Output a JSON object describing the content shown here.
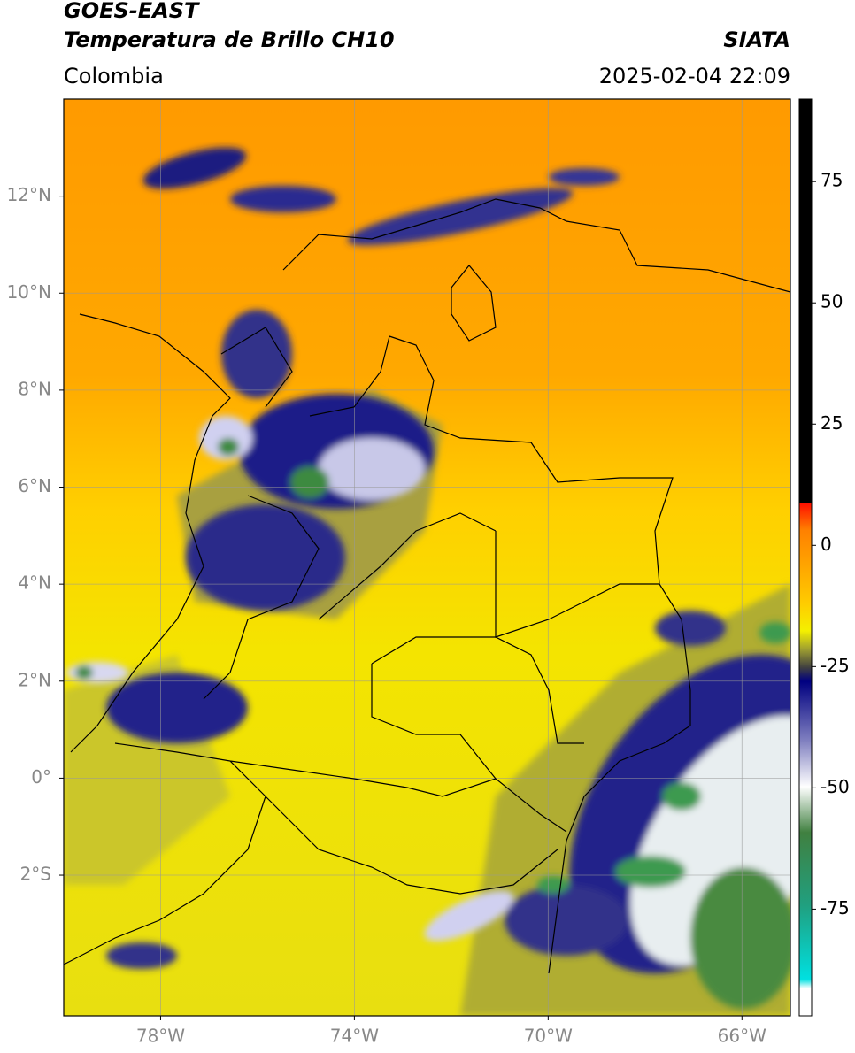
{
  "header": {
    "title": "GOES-EAST",
    "subtitle": "Temperatura de Brillo CH10",
    "source": "SIATA",
    "region": "Colombia",
    "timestamp": "2025-02-04 22:09"
  },
  "map": {
    "xlim": [
      -80,
      -65
    ],
    "ylim": [
      -4.9,
      14
    ],
    "xticks": [
      {
        "value": -78,
        "label": "78°W"
      },
      {
        "value": -74,
        "label": "74°W"
      },
      {
        "value": -70,
        "label": "70°W"
      },
      {
        "value": -66,
        "label": "66°W"
      }
    ],
    "yticks": [
      {
        "value": 12,
        "label": "12°N"
      },
      {
        "value": 10,
        "label": "10°N"
      },
      {
        "value": 8,
        "label": "8°N"
      },
      {
        "value": 6,
        "label": "6°N"
      },
      {
        "value": 4,
        "label": "4°N"
      },
      {
        "value": 2,
        "label": "2°N"
      },
      {
        "value": 0,
        "label": "0°"
      },
      {
        "value": -2,
        "label": "2°S"
      }
    ],
    "grid": true
  },
  "colorbar": {
    "vlim": [
      -97,
      92
    ],
    "ticks": [
      75,
      50,
      25,
      0,
      -25,
      -50,
      -75
    ]
  }
}
